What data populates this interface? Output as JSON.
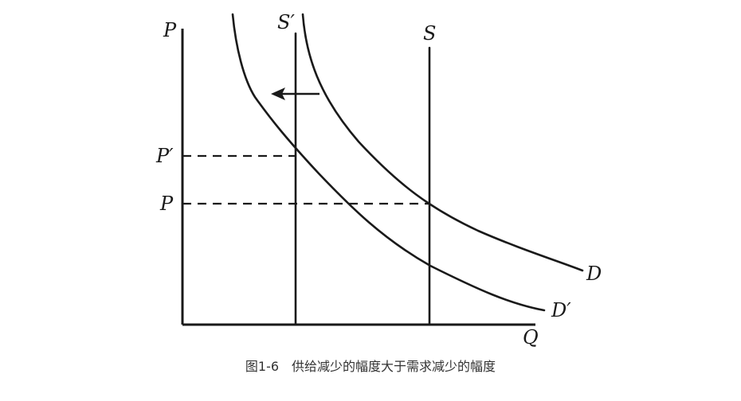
{
  "labels": {
    "y_axis": "P",
    "x_axis": "Q",
    "supply_new": "S′",
    "supply_old": "S",
    "demand_old": "D",
    "demand_new": "D′",
    "price_new": "P′",
    "price_old": "P"
  },
  "caption": "图1-6　供给减少的幅度大于需求减少的幅度",
  "colors": {
    "line": "#1a1a1a",
    "caption": "#333333",
    "background": "#ffffff"
  },
  "icons": {
    "shift_arrow": "arrow-left-icon"
  }
}
